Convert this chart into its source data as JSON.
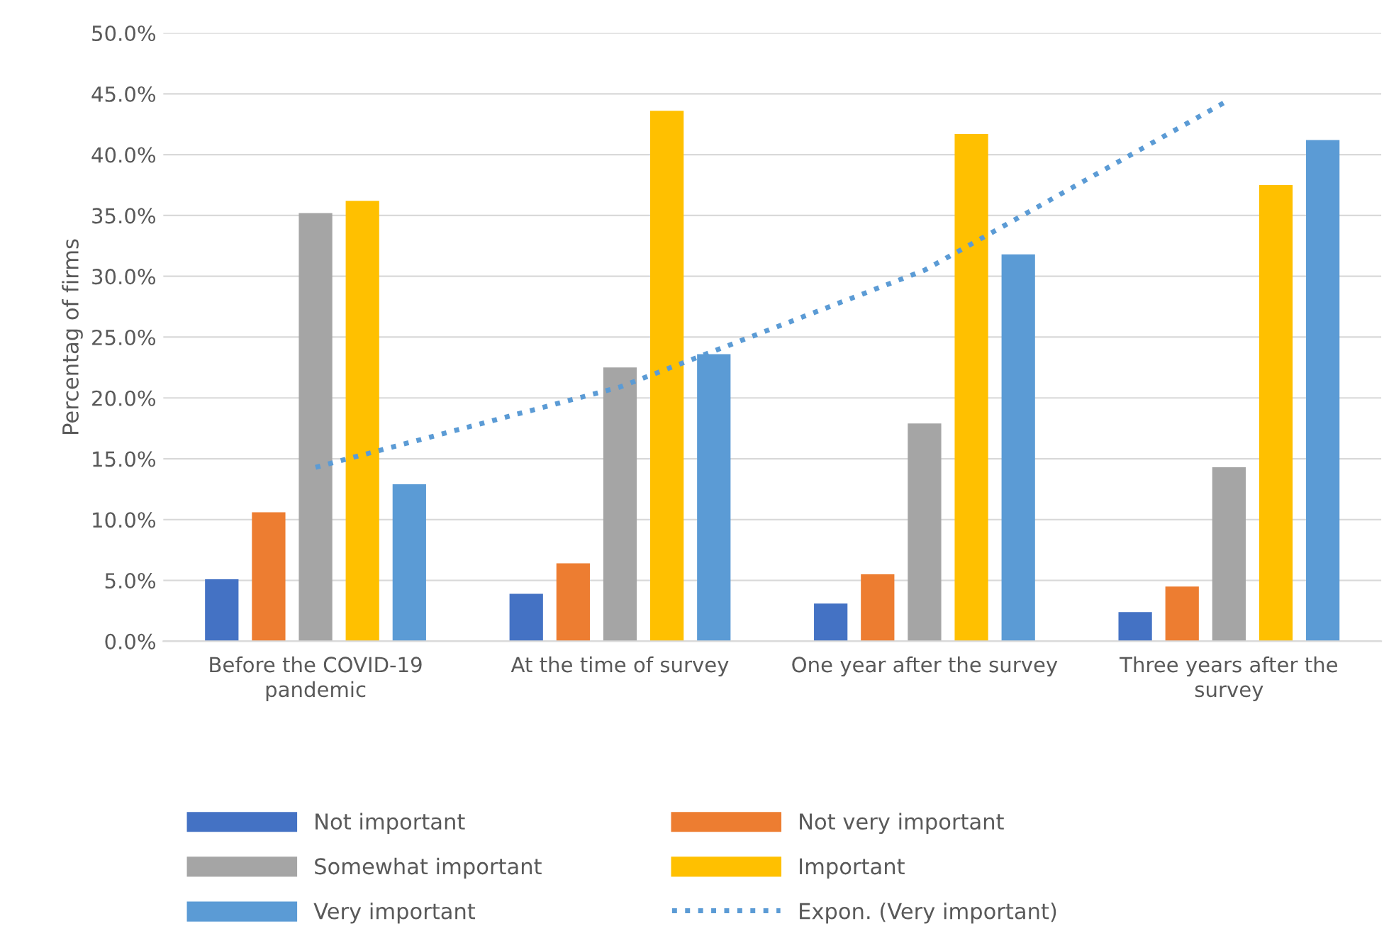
{
  "chart_data": {
    "type": "bar",
    "ylabel": "Percentag of firms",
    "categories": [
      "Before the COVID-19 pandemic",
      "At the time of survey",
      "One year after the survey",
      "Three years after the survey"
    ],
    "series": [
      {
        "name": "Not important",
        "color": "#4472c4",
        "values": [
          5.1,
          3.9,
          3.1,
          2.4
        ]
      },
      {
        "name": "Not very important",
        "color": "#ed7d31",
        "values": [
          10.6,
          6.4,
          5.5,
          4.5
        ]
      },
      {
        "name": "Somewhat important",
        "color": "#a5a5a5",
        "values": [
          35.2,
          22.5,
          17.9,
          14.3
        ]
      },
      {
        "name": "Important",
        "color": "#ffc000",
        "values": [
          36.2,
          43.6,
          41.7,
          37.5
        ]
      },
      {
        "name": "Very important",
        "color": "#5b9bd5",
        "values": [
          12.9,
          23.6,
          31.8,
          41.2
        ]
      },
      {
        "name": "Expon. (Very important)",
        "color": "#5b9bd5",
        "type": "line",
        "line_style": "dotted",
        "values": [
          14.3,
          20.9,
          30.5,
          44.5
        ]
      }
    ],
    "ylim": [
      0,
      50
    ],
    "yticks": [
      {
        "value": 0,
        "label": "0.0%"
      },
      {
        "value": 5,
        "label": "5.0%"
      },
      {
        "value": 10,
        "label": "10.0%"
      },
      {
        "value": 15,
        "label": "15.0%"
      },
      {
        "value": 20,
        "label": "20.0%"
      },
      {
        "value": 25,
        "label": "25.0%"
      },
      {
        "value": 30,
        "label": "30.0%"
      },
      {
        "value": 35,
        "label": "35.0%"
      },
      {
        "value": 40,
        "label": "40.0%"
      },
      {
        "value": 45,
        "label": "45.0%"
      },
      {
        "value": 50,
        "label": "50.0%"
      }
    ],
    "grid": "y",
    "legend": "bottom"
  }
}
